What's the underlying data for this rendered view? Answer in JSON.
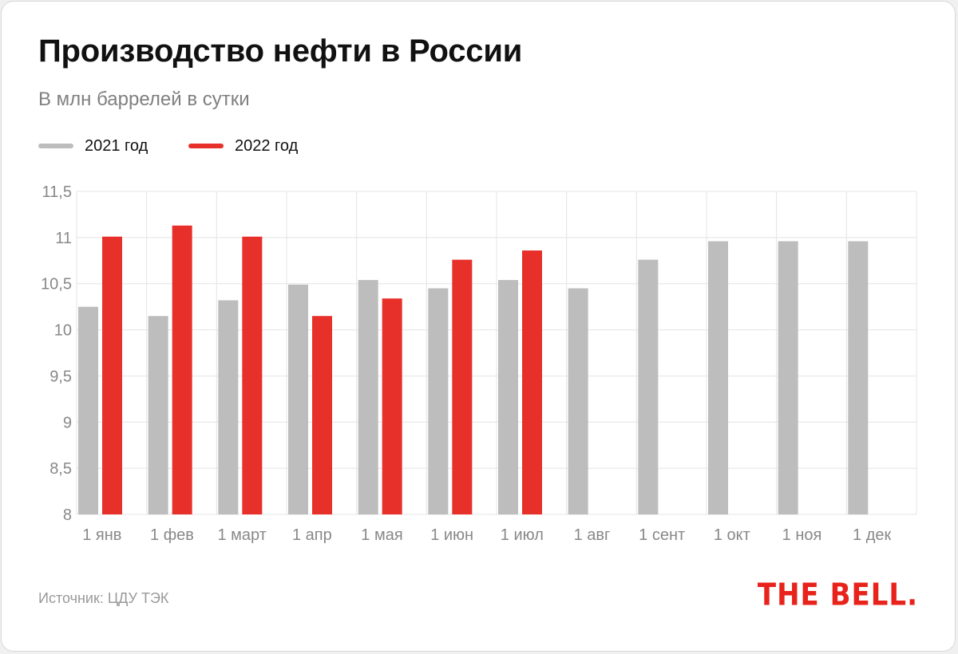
{
  "title": "Производство нефти в России",
  "subtitle": "В млн баррелей в сутки",
  "legend": [
    {
      "label": "2021 год",
      "color": "#bdbdbd"
    },
    {
      "label": "2022 год",
      "color": "#e8302a"
    }
  ],
  "source": "Источник: ЦДУ ТЭК",
  "logo": "THE BELL.",
  "chart_data": {
    "type": "bar",
    "title": "Производство нефти в России",
    "subtitle": "В млн баррелей в сутки",
    "categories": [
      "1 янв",
      "1 фев",
      "1 март",
      "1 апр",
      "1 мая",
      "1 июн",
      "1 июл",
      "1 авг",
      "1 сент",
      "1 окт",
      "1 ноя",
      "1 дек"
    ],
    "series": [
      {
        "name": "2021 год",
        "color": "#bdbdbd",
        "values": [
          10.25,
          10.15,
          10.32,
          10.49,
          10.54,
          10.45,
          10.54,
          10.45,
          10.76,
          10.96,
          10.96,
          10.96
        ]
      },
      {
        "name": "2022 год",
        "color": "#e8302a",
        "values": [
          11.01,
          11.13,
          11.01,
          10.15,
          10.34,
          10.76,
          10.86,
          null,
          null,
          null,
          null,
          null
        ]
      }
    ],
    "ylim": [
      8,
      11.5
    ],
    "yticks": [
      8,
      8.5,
      9,
      9.5,
      10,
      10.5,
      11,
      11.5
    ],
    "ytick_labels": [
      "8",
      "8,5",
      "9",
      "9,5",
      "10",
      "10,5",
      "11",
      "11,5"
    ],
    "xlabel": "",
    "ylabel": "",
    "grid": true,
    "legend_position": "top-left"
  }
}
